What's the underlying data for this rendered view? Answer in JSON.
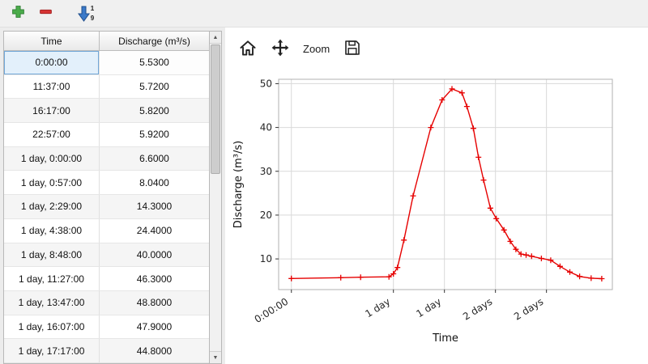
{
  "window": {
    "bg": "#ececec",
    "panel_bg": "#ffffff"
  },
  "top_toolbar": {
    "buttons": [
      {
        "name": "add-row-button",
        "icon": "add-icon",
        "color": "#3f9e3f"
      },
      {
        "name": "remove-row-button",
        "icon": "remove-icon",
        "color": "#cc3333"
      },
      {
        "name": "sort-button",
        "icon": "sort-numeric-ascending-icon",
        "color": "#2d6fbd",
        "digits_top": "1",
        "digits_bottom": "9"
      }
    ]
  },
  "table": {
    "columns": [
      "Time",
      "Discharge (m³/s)"
    ],
    "selected_row_index": 0,
    "rows": [
      {
        "time": "0:00:00",
        "discharge": "5.5300"
      },
      {
        "time": "11:37:00",
        "discharge": "5.7200"
      },
      {
        "time": "16:17:00",
        "discharge": "5.8200"
      },
      {
        "time": "22:57:00",
        "discharge": "5.9200"
      },
      {
        "time": "1 day, 0:00:00",
        "discharge": "6.6000"
      },
      {
        "time": "1 day, 0:57:00",
        "discharge": "8.0400"
      },
      {
        "time": "1 day, 2:29:00",
        "discharge": "14.3000"
      },
      {
        "time": "1 day, 4:38:00",
        "discharge": "24.4000"
      },
      {
        "time": "1 day, 8:48:00",
        "discharge": "40.0000"
      },
      {
        "time": "1 day, 11:27:00",
        "discharge": "46.3000"
      },
      {
        "time": "1 day, 13:47:00",
        "discharge": "48.8000"
      },
      {
        "time": "1 day, 16:07:00",
        "discharge": "47.9000"
      },
      {
        "time": "1 day, 17:17:00",
        "discharge": "44.8000"
      }
    ]
  },
  "chart_toolbar": {
    "buttons": [
      {
        "name": "home-button",
        "icon": "home-icon"
      },
      {
        "name": "pan-button",
        "icon": "move-icon"
      },
      {
        "name": "zoom-button",
        "label": "Zoom"
      },
      {
        "name": "save-button",
        "icon": "save-icon"
      }
    ]
  },
  "chart_data": {
    "type": "line",
    "xlabel": "Time",
    "ylabel": "Discharge (m³/s)",
    "line_color": "#e60000",
    "marker": "+",
    "grid": true,
    "xlim_hours": [
      -3,
      75.5
    ],
    "ylim": [
      3,
      51
    ],
    "yticks": [
      10,
      20,
      30,
      40,
      50
    ],
    "xticks": [
      {
        "hours": 0,
        "label": "0:00:00"
      },
      {
        "hours": 24,
        "label": "1 day"
      },
      {
        "hours": 36,
        "label": "1 day"
      },
      {
        "hours": 48,
        "label": "2 days"
      },
      {
        "hours": 60,
        "label": "2 days"
      }
    ],
    "points": [
      [
        0,
        5.53
      ],
      [
        11.62,
        5.72
      ],
      [
        16.28,
        5.82
      ],
      [
        22.95,
        5.92
      ],
      [
        24,
        6.6
      ],
      [
        24.95,
        8.04
      ],
      [
        26.48,
        14.3
      ],
      [
        28.63,
        24.4
      ],
      [
        32.8,
        40.0
      ],
      [
        35.45,
        46.3
      ],
      [
        37.78,
        48.8
      ],
      [
        40.12,
        47.9
      ],
      [
        41.28,
        44.8
      ],
      [
        42.8,
        39.8
      ],
      [
        44.0,
        33.2
      ],
      [
        45.2,
        28.0
      ],
      [
        46.8,
        21.6
      ],
      [
        48.2,
        19.2
      ],
      [
        50.0,
        16.6
      ],
      [
        51.5,
        14.0
      ],
      [
        52.8,
        12.2
      ],
      [
        54.0,
        11.1
      ],
      [
        55.2,
        10.9
      ],
      [
        56.5,
        10.6
      ],
      [
        58.8,
        10.1
      ],
      [
        61.0,
        9.7
      ],
      [
        63.2,
        8.3
      ],
      [
        65.5,
        7.0
      ],
      [
        67.8,
        6.0
      ],
      [
        70.5,
        5.6
      ],
      [
        73.0,
        5.5
      ]
    ]
  }
}
